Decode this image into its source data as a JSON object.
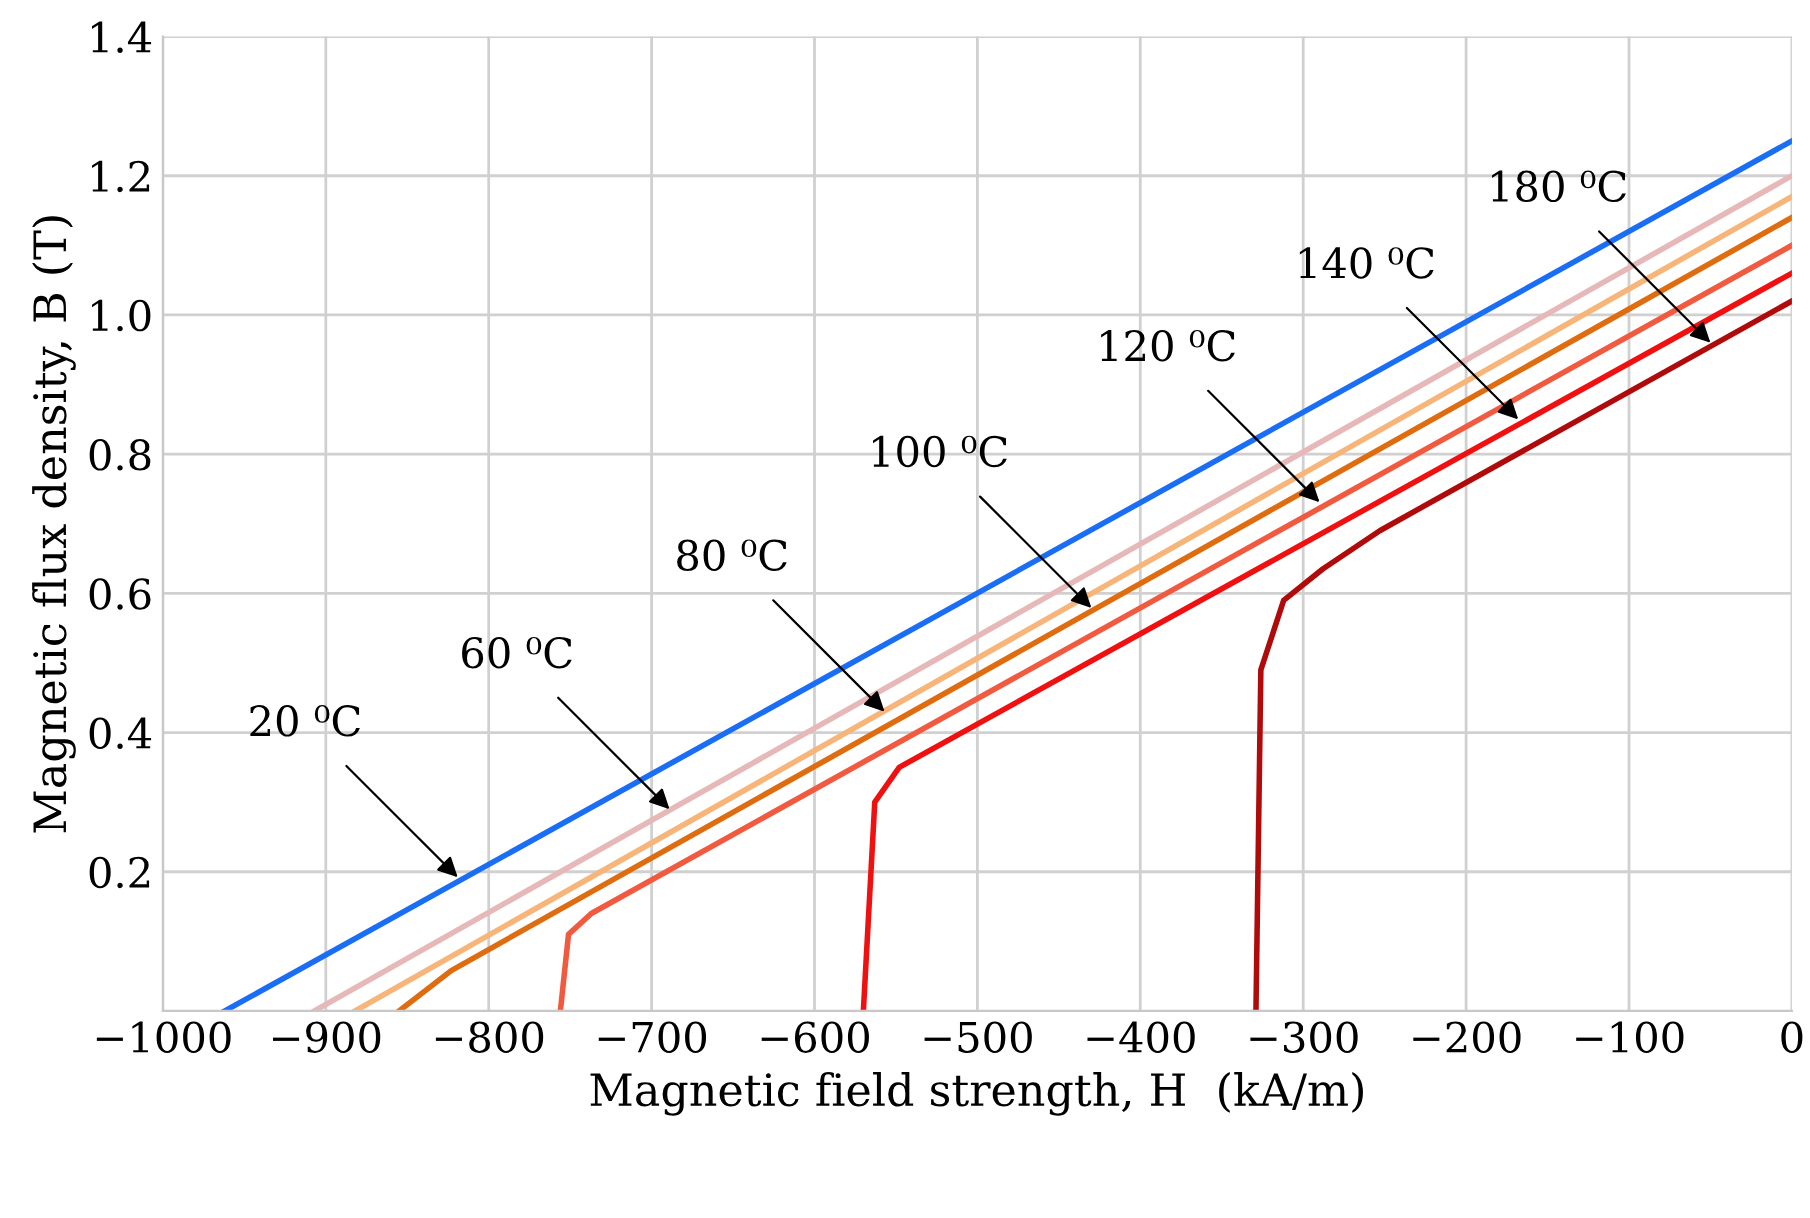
{
  "chart_data": {
    "type": "line",
    "xlabel": "Magnetic field strength, H  (kA/m)",
    "ylabel": "Magnetic flux density, B (T)",
    "xlim": [
      -1000,
      0
    ],
    "ylim": [
      0,
      1.4
    ],
    "xticks": [
      {
        "value": -1000,
        "label": "−1000"
      },
      {
        "value": -900,
        "label": "−900"
      },
      {
        "value": -800,
        "label": "−800"
      },
      {
        "value": -700,
        "label": "−700"
      },
      {
        "value": -600,
        "label": "−600"
      },
      {
        "value": -500,
        "label": "−500"
      },
      {
        "value": -400,
        "label": "−400"
      },
      {
        "value": -300,
        "label": "−300"
      },
      {
        "value": -200,
        "label": "−200"
      },
      {
        "value": -100,
        "label": "−100"
      },
      0
    ],
    "yticks": [
      0.2,
      0.4,
      0.6,
      0.8,
      {
        "value": 1,
        "label": "1.0"
      },
      1.2,
      1.4
    ],
    "grid": true,
    "legend": false,
    "marker": "none",
    "line_style": "solid",
    "series": [
      {
        "color": "#1a6ef5",
        "x": [
          -962,
          0
        ],
        "values": [
          0,
          1.25
        ]
      },
      {
        "color": "#e6b8b8",
        "x": [
          -907,
          0
        ],
        "values": [
          0,
          1.2
        ]
      },
      {
        "color": "#f7b57a",
        "x": [
          -882,
          0
        ],
        "values": [
          0,
          1.17
        ]
      },
      {
        "color": "#e06c10",
        "x": [
          -855,
          -823,
          0
        ],
        "values": [
          0,
          0.058,
          1.14
        ]
      },
      {
        "color": "#f25a40",
        "x": [
          -756,
          -751,
          -737,
          0
        ],
        "values": [
          0,
          0.11,
          0.14,
          1.1
        ]
      },
      {
        "color": "#f01010",
        "x": [
          -570,
          -563,
          -548,
          0
        ],
        "values": [
          0,
          0.3,
          0.35,
          1.06
        ]
      },
      {
        "color": "#b00a0a",
        "x": [
          -329,
          -326,
          -312,
          -288,
          -253,
          0
        ],
        "values": [
          0,
          0.49,
          0.59,
          0.635,
          0.69,
          1.02
        ]
      }
    ],
    "annotations": [
      {
        "text": "20 ⁰C",
        "x": -819,
        "y": 0.192
      },
      {
        "text": "60 ⁰C",
        "x": -689,
        "y": 0.29
      },
      {
        "text": "80 ⁰C",
        "x": -557,
        "y": 0.43
      },
      {
        "text": "100 ⁰C",
        "x": -430,
        "y": 0.579
      },
      {
        "text": "120 ⁰C",
        "x": -290,
        "y": 0.731
      },
      {
        "text": "140 ⁰C",
        "x": -168,
        "y": 0.85
      },
      {
        "text": "180 ⁰C",
        "x": -50,
        "y": 0.96
      }
    ]
  }
}
